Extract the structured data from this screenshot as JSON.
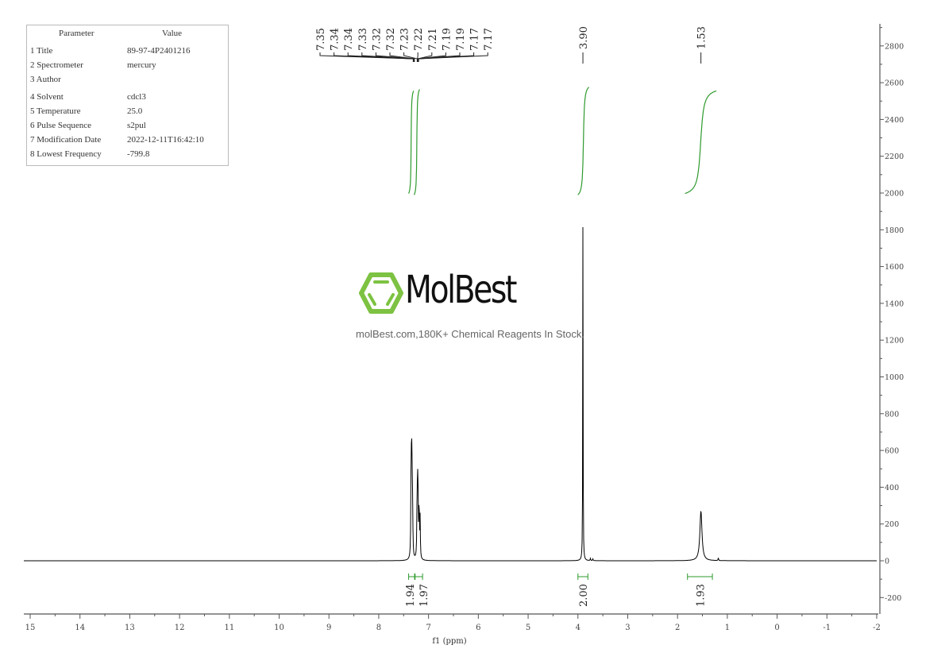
{
  "parameters": {
    "header": [
      "Parameter",
      "Value"
    ],
    "rows": [
      [
        "1 Title",
        "89-97-4P2401216"
      ],
      [
        "2 Spectrometer",
        "mercury"
      ],
      [
        "3 Author",
        ""
      ],
      [
        "4 Solvent",
        "cdcl3"
      ],
      [
        "5 Temperature",
        "25.0"
      ],
      [
        "6 Pulse Sequence",
        "s2pul"
      ],
      [
        "7 Modification Date",
        "2022-12-11T16:42:10"
      ],
      [
        "8 Lowest Frequency",
        "-799.8"
      ]
    ]
  },
  "watermark": {
    "logo_text": "MolBest",
    "tagline": "molBest.com,180K+ Chemical Reagents In Stock.",
    "brand_color": "#7dc242"
  },
  "chart_data": {
    "type": "line",
    "title": "",
    "xlabel": "f1 (ppm)",
    "ylabel": "",
    "xlim": [
      15,
      -2
    ],
    "ylim": [
      -300,
      2900
    ],
    "x_ticks": [
      "15",
      "14",
      "13",
      "12",
      "11",
      "10",
      "9",
      "8",
      "7",
      "6",
      "5",
      "4",
      "3",
      "2",
      "1",
      "0",
      "-1",
      "-2"
    ],
    "y_ticks": [
      "-200",
      "0",
      "200",
      "400",
      "600",
      "800",
      "1000",
      "1200",
      "1400",
      "1600",
      "1800",
      "2000",
      "2200",
      "2400",
      "2600",
      "2800"
    ],
    "grid": false,
    "line_color": "#000000",
    "integral_color": "#2e9a2e",
    "peaks": [
      {
        "ppm": 7.35,
        "height": 470
      },
      {
        "ppm": 7.34,
        "height": 520
      },
      {
        "ppm": 7.33,
        "height": 300
      },
      {
        "ppm": 7.32,
        "height": 230
      },
      {
        "ppm": 7.23,
        "height": 280
      },
      {
        "ppm": 7.22,
        "height": 380
      },
      {
        "ppm": 7.21,
        "height": 250
      },
      {
        "ppm": 7.19,
        "height": 320
      },
      {
        "ppm": 7.17,
        "height": 220
      },
      {
        "ppm": 3.9,
        "height": 1850
      },
      {
        "ppm": 3.75,
        "height": 12
      },
      {
        "ppm": 3.7,
        "height": 10
      },
      {
        "ppm": 1.53,
        "height": 272
      },
      {
        "ppm": 1.18,
        "height": 15
      }
    ],
    "peak_labels": [
      "7.35",
      "7.34",
      "7.34",
      "7.33",
      "7.32",
      "7.32",
      "7.23",
      "7.22",
      "7.21",
      "7.19",
      "7.19",
      "7.17",
      "7.17"
    ],
    "single_peak_labels": [
      "3.90",
      "1.53"
    ],
    "integrals": [
      {
        "from": 7.4,
        "to": 7.28,
        "value": "1.94"
      },
      {
        "from": 7.27,
        "to": 7.12,
        "value": "1.97"
      },
      {
        "from": 4.0,
        "to": 3.8,
        "value": "2.00"
      },
      {
        "from": 1.8,
        "to": 1.3,
        "value": "1.93"
      }
    ]
  }
}
